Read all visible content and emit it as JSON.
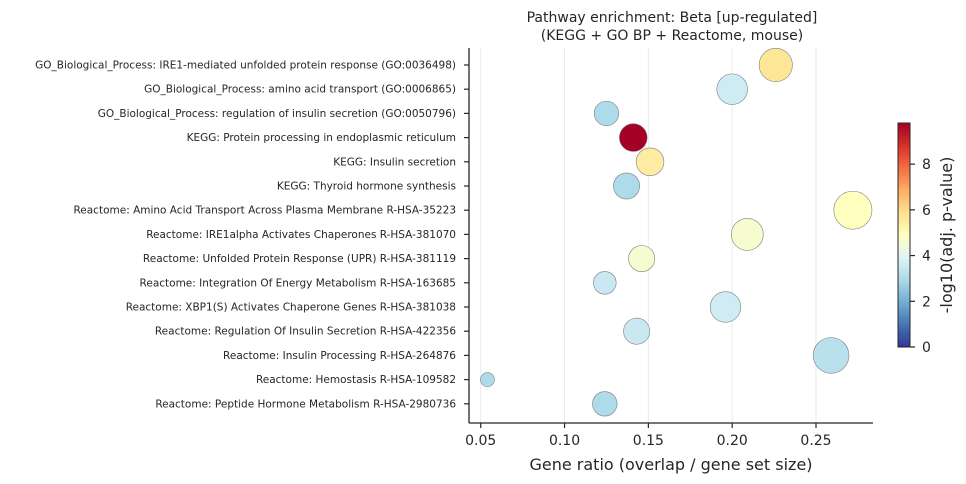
{
  "chart_data": {
    "type": "scatter",
    "title": "Pathway enrichment: Beta  [up-regulated]",
    "subtitle": "(KEGG + GO BP + Reactome, mouse)",
    "xlabel": "Gene ratio (overlap / gene set size)",
    "ylabel": "",
    "xlim": [
      0.043,
      0.284
    ],
    "xticks": [
      0.05,
      0.1,
      0.15,
      0.2,
      0.25
    ],
    "xtick_labels": [
      "0.05",
      "0.10",
      "0.15",
      "0.20",
      "0.25"
    ],
    "grid": "vertical",
    "colormap": "RdYlBu_r",
    "colorbar": {
      "label": "-log10(adj. p-value)",
      "min": 0,
      "max": 9.8,
      "ticks": [
        0,
        2,
        4,
        6,
        8
      ],
      "tick_labels": [
        "0",
        "2",
        "4",
        "6",
        "8"
      ],
      "placement": "right"
    },
    "size_encoding": "overlap count",
    "categories": [
      "GO_Biological_Process: IRE1-mediated unfolded protein response (GO:0036498)",
      "GO_Biological_Process: amino acid transport (GO:0006865)",
      "GO_Biological_Process: regulation of insulin secretion (GO:0050796)",
      "KEGG: Protein processing in endoplasmic reticulum",
      "KEGG: Insulin secretion",
      "KEGG: Thyroid hormone synthesis",
      "Reactome: Amino Acid Transport Across Plasma Membrane R-HSA-35223",
      "Reactome: IRE1alpha Activates Chaperones R-HSA-381070",
      "Reactome: Unfolded Protein Response (UPR) R-HSA-381119",
      "Reactome: Integration Of Energy Metabolism R-HSA-163685",
      "Reactome: XBP1(S) Activates Chaperone Genes R-HSA-381038",
      "Reactome: Regulation Of Insulin Secretion R-HSA-422356",
      "Reactome: Insulin Processing R-HSA-264876",
      "Reactome: Hemostasis R-HSA-109582",
      "Reactome: Peptide Hormone Metabolism R-HSA-2980736"
    ],
    "points": [
      {
        "x": 0.226,
        "neglog10_padj": 5.7,
        "size": 14
      },
      {
        "x": 0.2,
        "neglog10_padj": 3.6,
        "size": 12
      },
      {
        "x": 0.125,
        "neglog10_padj": 3.0,
        "size": 8
      },
      {
        "x": 0.141,
        "neglog10_padj": 9.8,
        "size": 10
      },
      {
        "x": 0.151,
        "neglog10_padj": 5.5,
        "size": 10
      },
      {
        "x": 0.137,
        "neglog10_padj": 3.0,
        "size": 9
      },
      {
        "x": 0.272,
        "neglog10_padj": 4.9,
        "size": 18
      },
      {
        "x": 0.209,
        "neglog10_padj": 4.6,
        "size": 13
      },
      {
        "x": 0.146,
        "neglog10_padj": 4.6,
        "size": 9
      },
      {
        "x": 0.124,
        "neglog10_padj": 3.5,
        "size": 7
      },
      {
        "x": 0.196,
        "neglog10_padj": 3.6,
        "size": 12
      },
      {
        "x": 0.143,
        "neglog10_padj": 3.5,
        "size": 9
      },
      {
        "x": 0.259,
        "neglog10_padj": 3.2,
        "size": 16
      },
      {
        "x": 0.054,
        "neglog10_padj": 3.0,
        "size": 3
      },
      {
        "x": 0.124,
        "neglog10_padj": 3.0,
        "size": 8
      }
    ]
  }
}
